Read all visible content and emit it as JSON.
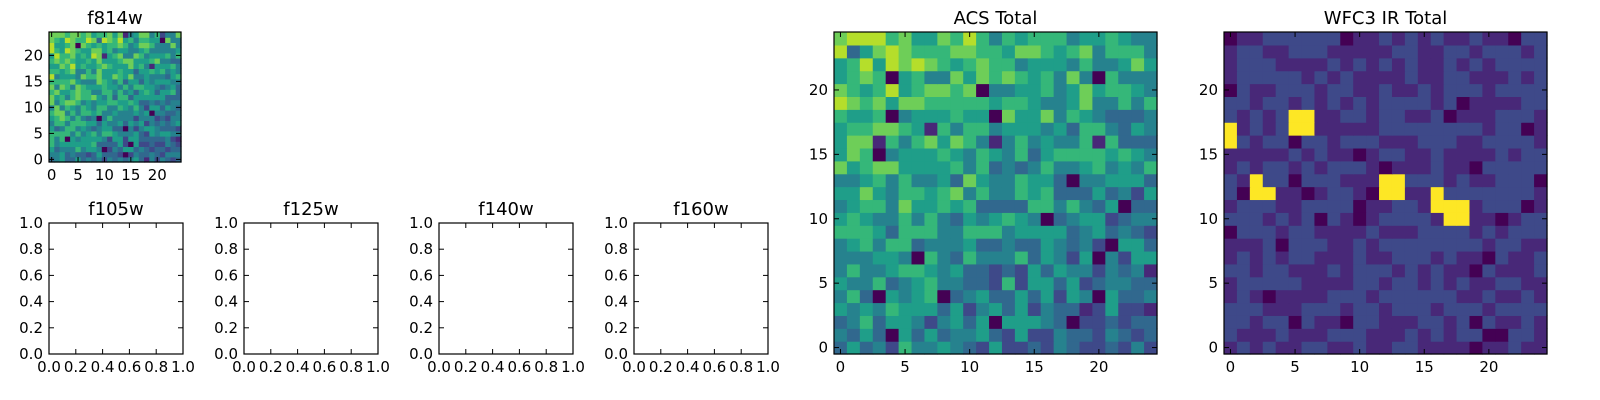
{
  "figure": {
    "palette": [
      "#440154",
      "#482878",
      "#3e4989",
      "#31688e",
      "#26828e",
      "#1f9e89",
      "#35b779",
      "#6ece58",
      "#b5de2b",
      "#fde725"
    ]
  },
  "chart_data": [
    {
      "type": "heatmap",
      "name": "f814w",
      "title": "f814w",
      "grid": [
        25,
        25
      ],
      "xticks": [
        0,
        5,
        10,
        15,
        20
      ],
      "yticks": [
        0,
        5,
        10,
        15,
        20
      ],
      "cmap": "viridis",
      "seed": 11,
      "pattern": "gradient"
    },
    {
      "type": "empty",
      "name": "f105w",
      "title": "f105w",
      "xticks": [
        "0.0",
        "0.2",
        "0.4",
        "0.6",
        "0.8",
        "1.0"
      ],
      "yticks": [
        "0.0",
        "0.2",
        "0.4",
        "0.6",
        "0.8",
        "1.0"
      ]
    },
    {
      "type": "empty",
      "name": "f125w",
      "title": "f125w",
      "xticks": [
        "0.0",
        "0.2",
        "0.4",
        "0.6",
        "0.8",
        "1.0"
      ],
      "yticks": [
        "0.0",
        "0.2",
        "0.4",
        "0.6",
        "0.8",
        "1.0"
      ]
    },
    {
      "type": "empty",
      "name": "f140w",
      "title": "f140w",
      "xticks": [
        "0.0",
        "0.2",
        "0.4",
        "0.6",
        "0.8",
        "1.0"
      ],
      "yticks": [
        "0.0",
        "0.2",
        "0.4",
        "0.6",
        "0.8",
        "1.0"
      ]
    },
    {
      "type": "empty",
      "name": "f160w",
      "title": "f160w",
      "xticks": [
        "0.0",
        "0.2",
        "0.4",
        "0.6",
        "0.8",
        "1.0"
      ],
      "yticks": [
        "0.0",
        "0.2",
        "0.4",
        "0.6",
        "0.8",
        "1.0"
      ]
    },
    {
      "type": "heatmap",
      "name": "acs-total",
      "title": "ACS Total",
      "grid": [
        25,
        25
      ],
      "xticks": [
        0,
        5,
        10,
        15,
        20
      ],
      "yticks": [
        0,
        5,
        10,
        15,
        20
      ],
      "cmap": "viridis",
      "seed": 7,
      "pattern": "gradient"
    },
    {
      "type": "heatmap",
      "name": "wfc3-ir-total",
      "title": "WFC3 IR Total",
      "grid": [
        25,
        25
      ],
      "xticks": [
        0,
        5,
        10,
        15,
        20
      ],
      "yticks": [
        0,
        5,
        10,
        15,
        20
      ],
      "cmap": "viridis",
      "seed": 3,
      "pattern": "sources",
      "bright_pixels": [
        [
          0,
          16
        ],
        [
          0,
          17
        ],
        [
          2,
          12
        ],
        [
          2,
          13
        ],
        [
          3,
          12
        ],
        [
          5,
          17
        ],
        [
          5,
          18
        ],
        [
          6,
          17
        ],
        [
          12,
          12
        ],
        [
          12,
          13
        ],
        [
          13,
          13
        ],
        [
          17,
          11
        ],
        [
          18,
          11
        ],
        [
          13,
          12
        ],
        [
          16,
          12
        ],
        [
          16,
          11
        ],
        [
          17,
          10
        ],
        [
          18,
          10
        ],
        [
          6,
          18
        ]
      ]
    }
  ]
}
